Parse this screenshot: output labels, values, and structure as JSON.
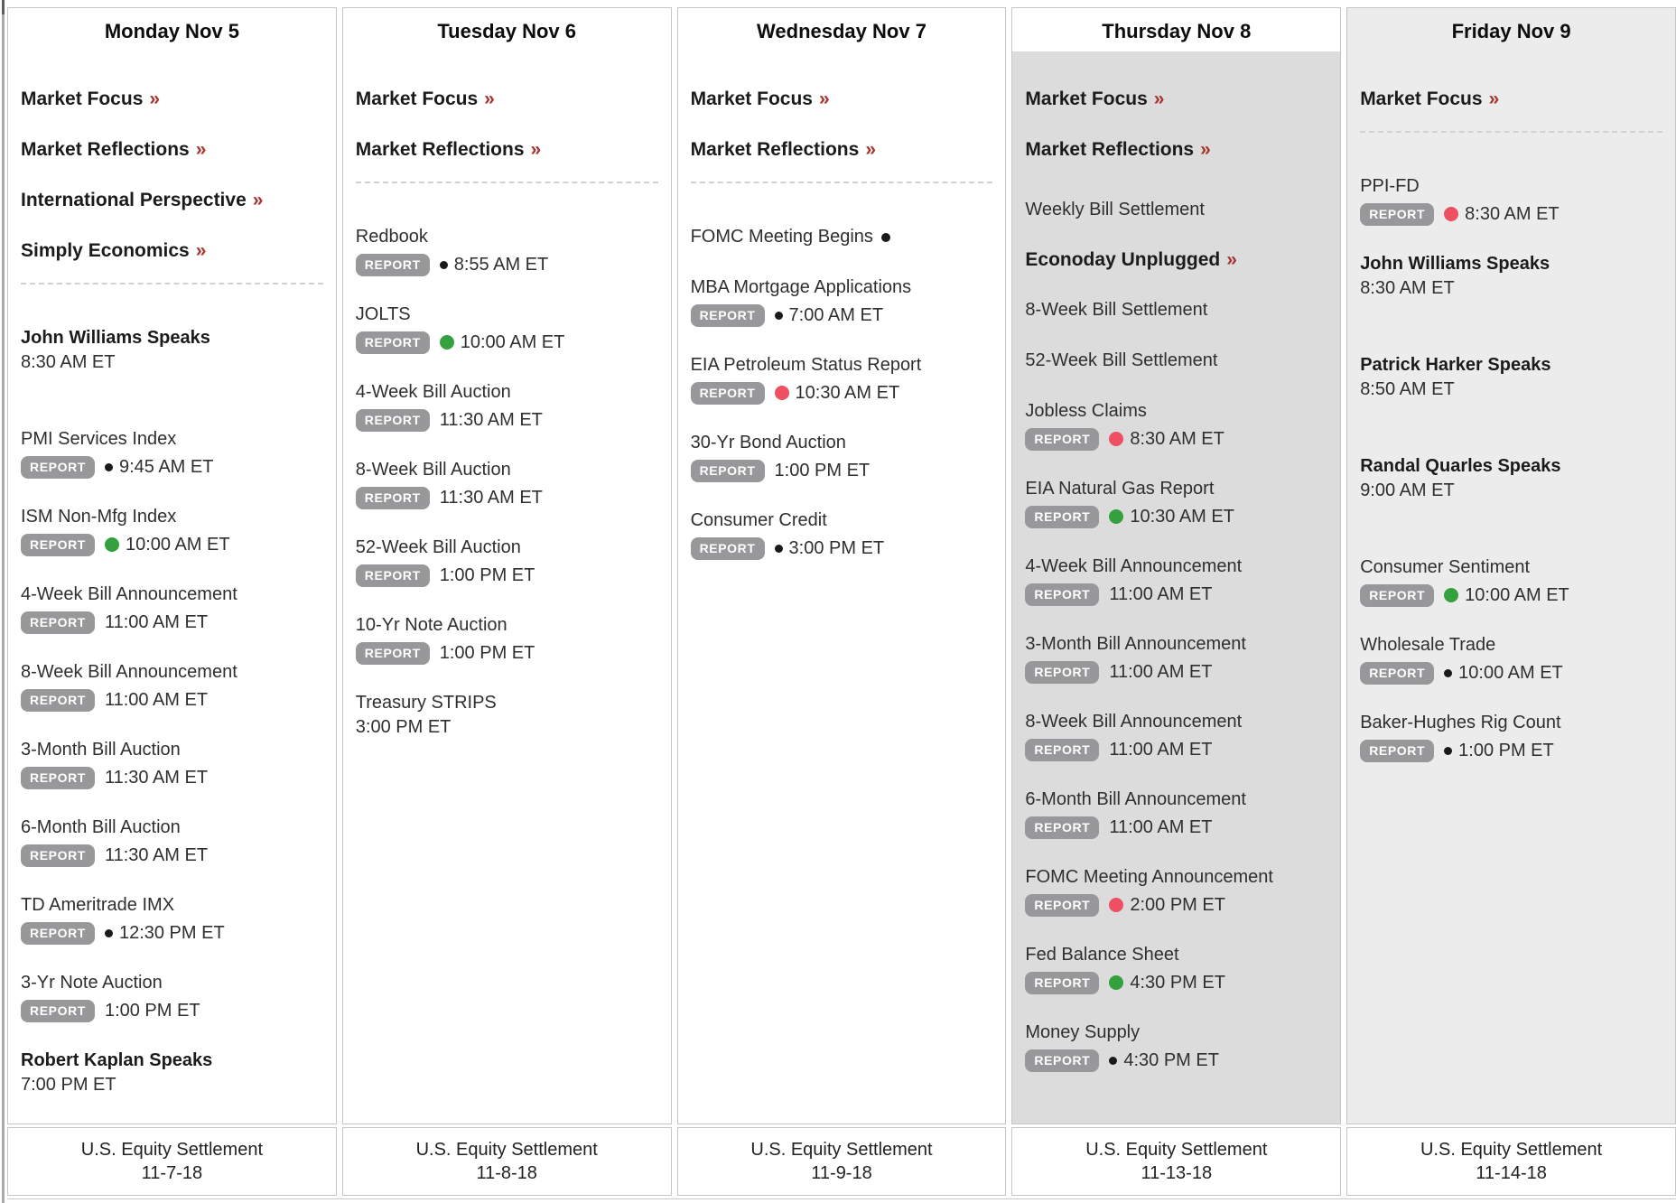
{
  "ui": {
    "link_arrow": "»"
  },
  "colors": {
    "accent_dark_red": "#a8322d",
    "dot_red": "#ee5062",
    "dot_green": "#35a03e",
    "dot_black": "#1a1a1a",
    "badge_bg": "#98989a",
    "today_column_bg": "#dcdcdc",
    "next_day_column_bg": "#ececec"
  },
  "days": [
    {
      "header": "Monday Nov 5",
      "highlight": null,
      "links": [
        "Market Focus",
        "Market Reflections",
        "International Perspective",
        "Simply Economics"
      ],
      "show_divider": true,
      "events": [
        {
          "kind": "speaker",
          "title": "John Williams Speaks",
          "time": "8:30 AM ET"
        },
        {
          "kind": "report",
          "title": "PMI Services Index",
          "badge": "REPORT",
          "dot": "black",
          "time": "9:45 AM ET"
        },
        {
          "kind": "report",
          "title": "ISM Non-Mfg Index",
          "badge": "REPORT",
          "dot": "green",
          "time": "10:00 AM ET"
        },
        {
          "kind": "report",
          "title": "4-Week Bill Announcement",
          "badge": "REPORT",
          "time": "11:00 AM ET"
        },
        {
          "kind": "report",
          "title": "8-Week Bill Announcement",
          "badge": "REPORT",
          "time": "11:00 AM ET"
        },
        {
          "kind": "report",
          "title": "3-Month Bill Auction",
          "badge": "REPORT",
          "time": "11:30 AM ET"
        },
        {
          "kind": "report",
          "title": "6-Month Bill Auction",
          "badge": "REPORT",
          "time": "11:30 AM ET"
        },
        {
          "kind": "report",
          "title": "TD Ameritrade IMX",
          "badge": "REPORT",
          "dot": "black",
          "time": "12:30 PM ET"
        },
        {
          "kind": "report",
          "title": "3-Yr Note Auction",
          "badge": "REPORT",
          "time": "1:00 PM ET"
        },
        {
          "kind": "speaker",
          "title": "Robert Kaplan Speaks",
          "time": "7:00 PM ET"
        }
      ],
      "settlement": {
        "label": "U.S. Equity Settlement",
        "date": "11-7-18"
      }
    },
    {
      "header": "Tuesday Nov 6",
      "highlight": null,
      "links": [
        "Market Focus",
        "Market Reflections"
      ],
      "show_divider": true,
      "events": [
        {
          "kind": "report",
          "title": "Redbook",
          "badge": "REPORT",
          "dot": "black",
          "time": "8:55 AM ET"
        },
        {
          "kind": "report",
          "title": "JOLTS",
          "badge": "REPORT",
          "dot": "green",
          "time": "10:00 AM ET"
        },
        {
          "kind": "report",
          "title": "4-Week Bill Auction",
          "badge": "REPORT",
          "time": "11:30 AM ET"
        },
        {
          "kind": "report",
          "title": "8-Week Bill Auction",
          "badge": "REPORT",
          "time": "11:30 AM ET"
        },
        {
          "kind": "report",
          "title": "52-Week Bill Auction",
          "badge": "REPORT",
          "time": "1:00 PM ET"
        },
        {
          "kind": "report",
          "title": "10-Yr Note Auction",
          "badge": "REPORT",
          "time": "1:00 PM ET"
        },
        {
          "kind": "timeonly",
          "title": "Treasury STRIPS",
          "time": "3:00 PM ET"
        }
      ],
      "settlement": {
        "label": "U.S. Equity Settlement",
        "date": "11-8-18"
      }
    },
    {
      "header": "Wednesday Nov 7",
      "highlight": null,
      "links": [
        "Market Focus",
        "Market Reflections"
      ],
      "show_divider": true,
      "events": [
        {
          "kind": "plain",
          "title": "FOMC Meeting Begins",
          "dot": "black"
        },
        {
          "kind": "report",
          "title": "MBA Mortgage Applications",
          "badge": "REPORT",
          "dot": "black",
          "time": "7:00 AM ET"
        },
        {
          "kind": "report",
          "title": "EIA Petroleum Status Report",
          "badge": "REPORT",
          "dot": "red",
          "time": "10:30 AM ET"
        },
        {
          "kind": "report",
          "title": "30-Yr Bond Auction",
          "badge": "REPORT",
          "time": "1:00 PM ET"
        },
        {
          "kind": "report",
          "title": "Consumer Credit",
          "badge": "REPORT",
          "dot": "black",
          "time": "3:00 PM ET"
        }
      ],
      "settlement": {
        "label": "U.S. Equity Settlement",
        "date": "11-9-18"
      }
    },
    {
      "header": "Thursday Nov 8",
      "highlight": "today",
      "links": [
        "Market Focus",
        "Market Reflections"
      ],
      "show_divider": false,
      "events": [
        {
          "kind": "plain",
          "title": "Weekly Bill Settlement"
        },
        {
          "kind": "link",
          "title": "Econoday Unplugged"
        },
        {
          "kind": "plain",
          "title": "8-Week Bill Settlement"
        },
        {
          "kind": "plain",
          "title": "52-Week Bill Settlement"
        },
        {
          "kind": "report",
          "title": "Jobless Claims",
          "badge": "REPORT",
          "dot": "red",
          "time": "8:30 AM ET"
        },
        {
          "kind": "report",
          "title": "EIA Natural Gas Report",
          "badge": "REPORT",
          "dot": "green",
          "time": "10:30 AM ET"
        },
        {
          "kind": "report",
          "title": "4-Week Bill Announcement",
          "badge": "REPORT",
          "time": "11:00 AM ET"
        },
        {
          "kind": "report",
          "title": "3-Month Bill Announcement",
          "badge": "REPORT",
          "time": "11:00 AM ET"
        },
        {
          "kind": "report",
          "title": "8-Week Bill Announcement",
          "badge": "REPORT",
          "time": "11:00 AM ET"
        },
        {
          "kind": "report",
          "title": "6-Month Bill Announcement",
          "badge": "REPORT",
          "time": "11:00 AM ET"
        },
        {
          "kind": "report",
          "title": "FOMC Meeting Announcement",
          "badge": "REPORT",
          "dot": "red",
          "time": "2:00 PM ET"
        },
        {
          "kind": "report",
          "title": "Fed Balance Sheet",
          "badge": "REPORT",
          "dot": "green",
          "time": "4:30 PM ET"
        },
        {
          "kind": "report",
          "title": "Money Supply",
          "badge": "REPORT",
          "dot": "black",
          "time": "4:30 PM ET"
        }
      ],
      "settlement": {
        "label": "U.S. Equity Settlement",
        "date": "11-13-18"
      }
    },
    {
      "header": "Friday Nov 9",
      "highlight": "future",
      "links": [
        "Market Focus"
      ],
      "show_divider": true,
      "events": [
        {
          "kind": "report",
          "title": "PPI-FD",
          "badge": "REPORT",
          "dot": "red",
          "time": "8:30 AM ET"
        },
        {
          "kind": "speaker",
          "title": "John Williams Speaks",
          "time": "8:30 AM ET"
        },
        {
          "kind": "speaker",
          "title": "Patrick Harker Speaks",
          "time": "8:50 AM ET"
        },
        {
          "kind": "speaker",
          "title": "Randal Quarles Speaks",
          "time": "9:00 AM ET"
        },
        {
          "kind": "report",
          "title": "Consumer Sentiment",
          "badge": "REPORT",
          "dot": "green",
          "time": "10:00 AM ET"
        },
        {
          "kind": "report",
          "title": "Wholesale Trade",
          "badge": "REPORT",
          "dot": "black",
          "time": "10:00 AM ET"
        },
        {
          "kind": "report",
          "title": "Baker-Hughes Rig Count",
          "badge": "REPORT",
          "dot": "black",
          "time": "1:00 PM ET"
        }
      ],
      "settlement": {
        "label": "U.S. Equity Settlement",
        "date": "11-14-18"
      }
    }
  ]
}
